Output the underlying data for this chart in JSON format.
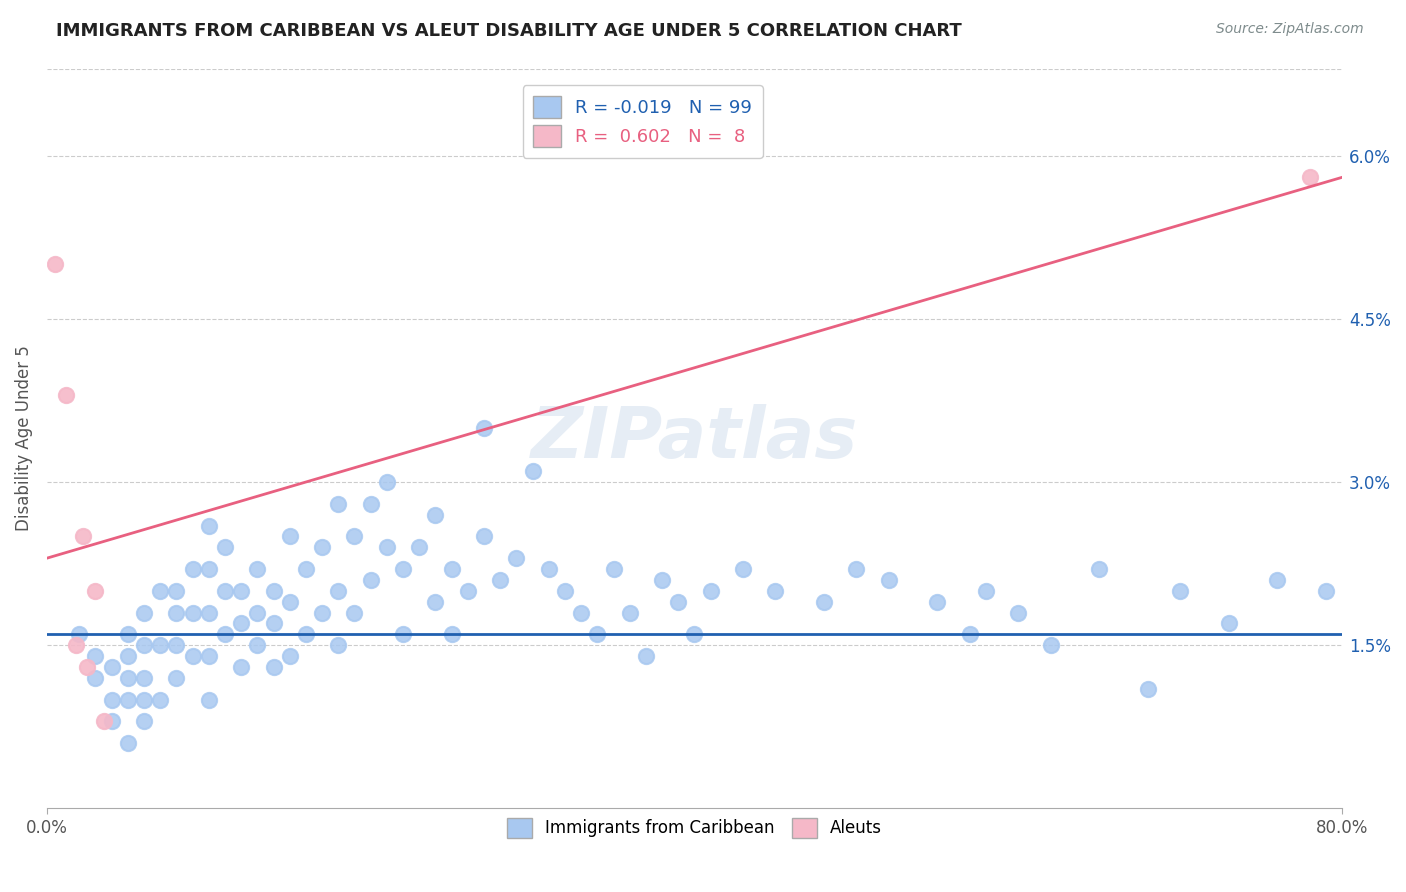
{
  "title": "IMMIGRANTS FROM CARIBBEAN VS ALEUT DISABILITY AGE UNDER 5 CORRELATION CHART",
  "source_text": "Source: ZipAtlas.com",
  "ylabel": "Disability Age Under 5",
  "xlim": [
    0.0,
    0.8
  ],
  "ylim": [
    0.0,
    0.068
  ],
  "x_ticks": [
    0.0,
    0.8
  ],
  "x_tick_labels": [
    "0.0%",
    "80.0%"
  ],
  "y_ticks": [
    0.015,
    0.03,
    0.045,
    0.06
  ],
  "y_tick_labels": [
    "1.5%",
    "3.0%",
    "4.5%",
    "6.0%"
  ],
  "blue_color": "#A8C8F0",
  "pink_color": "#F5B8C8",
  "blue_line_color": "#2060B0",
  "pink_line_color": "#E86080",
  "R_blue": -0.019,
  "N_blue": 99,
  "R_pink": 0.602,
  "N_pink": 8,
  "legend_label_blue": "Immigrants from Caribbean",
  "legend_label_pink": "Aleuts",
  "watermark": "ZIPatlas",
  "background_color": "#FFFFFF",
  "grid_color": "#CCCCCC",
  "blue_scatter_x": [
    0.02,
    0.03,
    0.03,
    0.04,
    0.04,
    0.04,
    0.05,
    0.05,
    0.05,
    0.05,
    0.05,
    0.06,
    0.06,
    0.06,
    0.06,
    0.06,
    0.07,
    0.07,
    0.07,
    0.08,
    0.08,
    0.08,
    0.08,
    0.09,
    0.09,
    0.09,
    0.1,
    0.1,
    0.1,
    0.1,
    0.1,
    0.11,
    0.11,
    0.11,
    0.12,
    0.12,
    0.12,
    0.13,
    0.13,
    0.13,
    0.14,
    0.14,
    0.14,
    0.15,
    0.15,
    0.15,
    0.16,
    0.16,
    0.17,
    0.17,
    0.18,
    0.18,
    0.18,
    0.19,
    0.19,
    0.2,
    0.2,
    0.21,
    0.21,
    0.22,
    0.22,
    0.23,
    0.24,
    0.24,
    0.25,
    0.25,
    0.26,
    0.27,
    0.27,
    0.28,
    0.29,
    0.3,
    0.31,
    0.32,
    0.33,
    0.34,
    0.35,
    0.36,
    0.37,
    0.38,
    0.39,
    0.4,
    0.41,
    0.43,
    0.45,
    0.48,
    0.5,
    0.52,
    0.55,
    0.57,
    0.58,
    0.6,
    0.62,
    0.65,
    0.68,
    0.7,
    0.73,
    0.76,
    0.79
  ],
  "blue_scatter_y": [
    0.016,
    0.014,
    0.012,
    0.013,
    0.01,
    0.008,
    0.016,
    0.014,
    0.012,
    0.01,
    0.006,
    0.018,
    0.015,
    0.012,
    0.01,
    0.008,
    0.02,
    0.015,
    0.01,
    0.02,
    0.018,
    0.015,
    0.012,
    0.022,
    0.018,
    0.014,
    0.026,
    0.022,
    0.018,
    0.014,
    0.01,
    0.024,
    0.02,
    0.016,
    0.02,
    0.017,
    0.013,
    0.022,
    0.018,
    0.015,
    0.02,
    0.017,
    0.013,
    0.025,
    0.019,
    0.014,
    0.022,
    0.016,
    0.024,
    0.018,
    0.028,
    0.02,
    0.015,
    0.025,
    0.018,
    0.028,
    0.021,
    0.03,
    0.024,
    0.022,
    0.016,
    0.024,
    0.027,
    0.019,
    0.022,
    0.016,
    0.02,
    0.035,
    0.025,
    0.021,
    0.023,
    0.031,
    0.022,
    0.02,
    0.018,
    0.016,
    0.022,
    0.018,
    0.014,
    0.021,
    0.019,
    0.016,
    0.02,
    0.022,
    0.02,
    0.019,
    0.022,
    0.021,
    0.019,
    0.016,
    0.02,
    0.018,
    0.015,
    0.022,
    0.011,
    0.02,
    0.017,
    0.021,
    0.02
  ],
  "pink_scatter_x": [
    0.005,
    0.012,
    0.018,
    0.022,
    0.025,
    0.03,
    0.035,
    0.78
  ],
  "pink_scatter_y": [
    0.05,
    0.038,
    0.015,
    0.025,
    0.013,
    0.02,
    0.008,
    0.058
  ],
  "pink_line_start_y": 0.023,
  "pink_line_end_y": 0.058,
  "blue_line_y": 0.016
}
